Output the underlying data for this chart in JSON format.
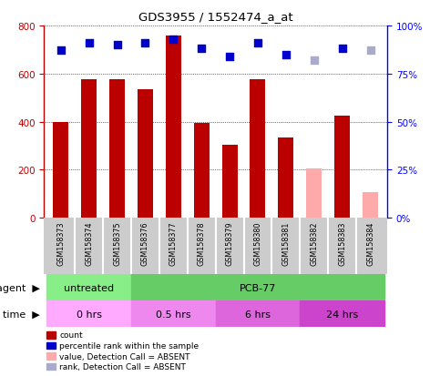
{
  "title": "GDS3955 / 1552474_a_at",
  "samples": [
    "GSM158373",
    "GSM158374",
    "GSM158375",
    "GSM158376",
    "GSM158377",
    "GSM158378",
    "GSM158379",
    "GSM158380",
    "GSM158381",
    "GSM158382",
    "GSM158383",
    "GSM158384"
  ],
  "counts": [
    400,
    575,
    575,
    535,
    760,
    395,
    305,
    575,
    335,
    205,
    425,
    105
  ],
  "ranks": [
    87,
    91,
    90,
    91,
    93,
    88,
    84,
    91,
    85,
    82,
    88,
    87
  ],
  "absent": [
    false,
    false,
    false,
    false,
    false,
    false,
    false,
    false,
    false,
    true,
    false,
    true
  ],
  "count_color": "#BB0000",
  "count_absent_color": "#FFAAAA",
  "rank_color": "#0000CC",
  "rank_absent_color": "#AAAACC",
  "ylim_left": [
    0,
    800
  ],
  "ylim_right": [
    0,
    100
  ],
  "yticks_left": [
    0,
    200,
    400,
    600,
    800
  ],
  "yticks_right": [
    0,
    25,
    50,
    75,
    100
  ],
  "ytick_labels_right": [
    "0%",
    "25%",
    "50%",
    "75%",
    "100%"
  ],
  "agent_groups": [
    {
      "label": "untreated",
      "cols": [
        0,
        1,
        2
      ],
      "color": "#88EE88"
    },
    {
      "label": "PCB-77",
      "cols": [
        3,
        4,
        5,
        6,
        7,
        8,
        9,
        10,
        11
      ],
      "color": "#66CC66"
    }
  ],
  "time_groups": [
    {
      "label": "0 hrs",
      "cols": [
        0,
        1,
        2
      ],
      "color": "#FFAAFF"
    },
    {
      "label": "0.5 hrs",
      "cols": [
        3,
        4,
        5
      ],
      "color": "#EE88EE"
    },
    {
      "label": "6 hrs",
      "cols": [
        6,
        7,
        8
      ],
      "color": "#DD66DD"
    },
    {
      "label": "24 hrs",
      "cols": [
        9,
        10,
        11
      ],
      "color": "#CC44CC"
    }
  ],
  "legend_items": [
    {
      "label": "count",
      "color": "#BB0000"
    },
    {
      "label": "percentile rank within the sample",
      "color": "#0000CC"
    },
    {
      "label": "value, Detection Call = ABSENT",
      "color": "#FFAAAA"
    },
    {
      "label": "rank, Detection Call = ABSENT",
      "color": "#AAAACC"
    }
  ],
  "sample_bg": "#CCCCCC",
  "plot_bg": "white",
  "fig_bg": "white"
}
